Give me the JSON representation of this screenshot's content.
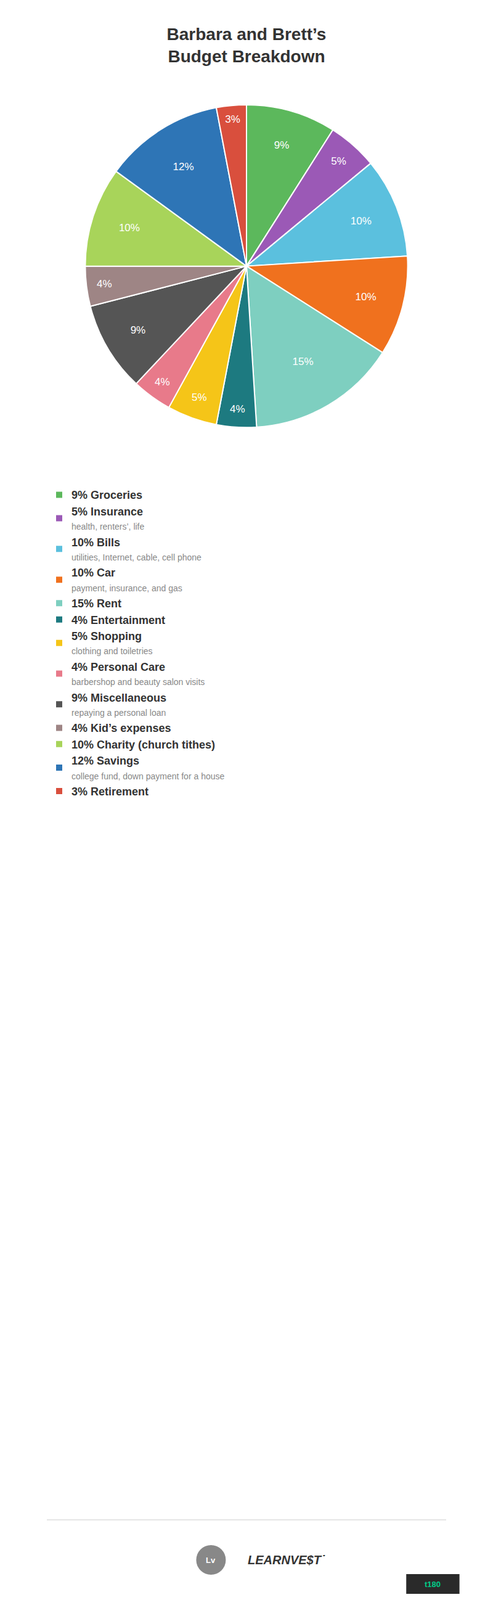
{
  "chart_data": {
    "type": "pie",
    "title": "Barbara and Brett’s\nBudget Breakdown",
    "categories": [
      "9% Groceries",
      "5% Insurance",
      "10% Bills",
      "10% Car",
      "15% Rent",
      "4% Entertainment",
      "5% Shopping",
      "4% Personal Care",
      "9% Miscellaneous",
      "4% Kid’s expenses",
      "10% Charity (church tithes)",
      "12% Savings",
      "3% Retirement"
    ],
    "category_notes": [
      null,
      "health, renters’, life",
      "utilities, Internet, cable, cell phone",
      "payment, insurance, and gas",
      null,
      null,
      "clothing and toiletries",
      "barbershop and beauty salon visits",
      "repaying a personal loan",
      null,
      null,
      "college fund, down payment for a house",
      null
    ],
    "values": [
      9,
      5,
      10,
      10,
      15,
      4,
      5,
      4,
      9,
      4,
      10,
      12,
      3
    ],
    "value_labels": [
      "9%",
      "5%",
      "10%",
      "10%",
      "15%",
      "4%",
      "5%",
      "4%",
      "9%",
      "4%",
      "10%",
      "12%",
      "3%"
    ],
    "colors": [
      "#5cb85c",
      "#9b59b6",
      "#5bc0de",
      "#f0711e",
      "#7ecfc0",
      "#1d7a80",
      "#f5c518",
      "#e87a8a",
      "#555555",
      "#9e8585",
      "#a8d45a",
      "#2e75b6",
      "#d94f3d"
    ],
    "data_labels": true,
    "legend": "bottom left",
    "annotations": [
      "Lv",
      "LEARNVE$T˙",
      "t180"
    ]
  }
}
